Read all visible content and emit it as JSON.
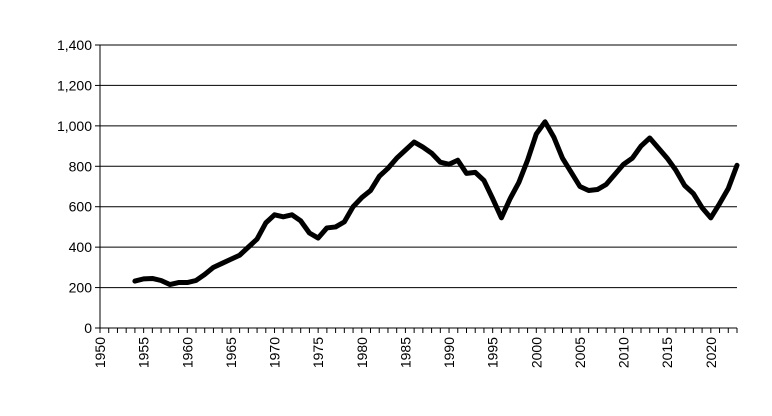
{
  "chart_data": {
    "type": "line",
    "title": "",
    "xlabel": "",
    "ylabel": "",
    "xlim": [
      1950,
      2023
    ],
    "ylim": [
      0,
      1400
    ],
    "grid": "horizontal",
    "legend": "none",
    "x_ticks": [
      "1950",
      "1955",
      "1960",
      "1965",
      "1970",
      "1975",
      "1980",
      "1985",
      "1990",
      "1995",
      "2000",
      "2005",
      "2010",
      "2015",
      "2020"
    ],
    "y_ticks": [
      "0",
      "200",
      "400",
      "600",
      "800",
      "1,000",
      "1,200",
      "1,400"
    ],
    "colors": {
      "line": "#000000",
      "grid": "#000000",
      "axis": "#000000"
    },
    "series": [
      {
        "x": [
          1954,
          1955,
          1956,
          1957,
          1958,
          1959,
          1960,
          1961,
          1962,
          1963,
          1964,
          1965,
          1966,
          1967,
          1968,
          1969,
          1970,
          1971,
          1972,
          1973,
          1974,
          1975,
          1976,
          1977,
          1978,
          1979,
          1980,
          1981,
          1982,
          1983,
          1984,
          1985,
          1986,
          1987,
          1988,
          1989,
          1990,
          1991,
          1992,
          1993,
          1994,
          1995,
          1996,
          1997,
          1998,
          1999,
          2000,
          2001,
          2002,
          2003,
          2004,
          2005,
          2006,
          2007,
          2008,
          2009,
          2010,
          2011,
          2012,
          2013,
          2014,
          2015,
          2016,
          2017,
          2018,
          2019,
          2020,
          2021,
          2022,
          2023
        ],
        "values": [
          232,
          243,
          245,
          235,
          215,
          225,
          225,
          235,
          265,
          300,
          320,
          340,
          360,
          400,
          440,
          520,
          560,
          550,
          560,
          530,
          470,
          445,
          495,
          500,
          525,
          600,
          645,
          680,
          750,
          790,
          840,
          880,
          920,
          895,
          865,
          820,
          810,
          830,
          765,
          770,
          730,
          640,
          545,
          640,
          720,
          830,
          960,
          1020,
          945,
          840,
          770,
          700,
          680,
          685,
          710,
          760,
          810,
          840,
          900,
          940,
          890,
          840,
          780,
          705,
          665,
          595,
          545,
          615,
          690,
          805
        ]
      }
    ]
  }
}
